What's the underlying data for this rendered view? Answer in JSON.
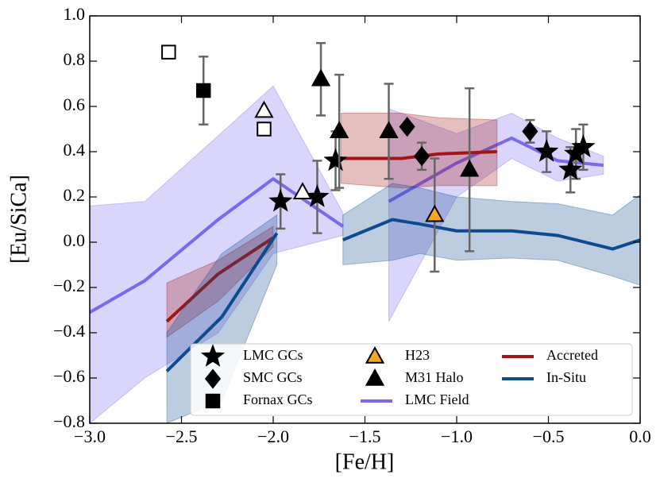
{
  "chart_data": {
    "type": "scatter",
    "xlabel": "[Fe/H]",
    "ylabel": "[Eu/SiCa]",
    "xlim": [
      -3,
      0
    ],
    "ylim": [
      -0.8,
      1.0
    ],
    "xticks": [
      {
        "value": -3,
        "label": "−3.0"
      },
      {
        "value": -2.5,
        "label": "−2.5"
      },
      {
        "value": -2,
        "label": "−2.0"
      },
      {
        "value": -1.5,
        "label": "−1.5"
      },
      {
        "value": -1,
        "label": "−1.0"
      },
      {
        "value": -0.5,
        "label": "−0.5"
      },
      {
        "value": 0,
        "label": "0.0"
      }
    ],
    "yticks": [
      {
        "value": -0.8,
        "label": "−0.8"
      },
      {
        "value": -0.6,
        "label": "−0.6"
      },
      {
        "value": -0.4,
        "label": "−0.4"
      },
      {
        "value": -0.2,
        "label": "−0.2"
      },
      {
        "value": 0,
        "label": "0.0"
      },
      0.2,
      0.4,
      0.6,
      0.8,
      {
        "value": 1,
        "label": "1.0"
      }
    ],
    "legend": "lower right",
    "series": [
      {
        "name": "LMC GCs",
        "type": "scatter",
        "marker": "star",
        "color": "#000000",
        "x": [
          -1.96,
          -1.76,
          -1.66,
          -0.51,
          -0.38,
          -0.35,
          -0.31
        ],
        "values": [
          0.18,
          0.2,
          0.36,
          0.4,
          0.32,
          0.39,
          0.42
        ],
        "errors": [
          0.12,
          0.16,
          0.13,
          0.09,
          0.1,
          0.11,
          0.1
        ]
      },
      {
        "name": "SMC GCs",
        "type": "scatter",
        "marker": "diamond",
        "color": "#000000",
        "x": [
          -1.27,
          -1.19,
          -0.6
        ],
        "values": [
          0.51,
          0.38,
          0.49
        ],
        "errors": [
          null,
          0.06,
          0.05
        ]
      },
      {
        "name": "Fornax GCs",
        "type": "scatter",
        "marker": "square",
        "color": "#000000",
        "x": [
          -2.38,
          -2.57,
          -2.05
        ],
        "values": [
          0.67,
          0.84,
          0.5
        ],
        "errors": [
          0.15,
          null,
          null
        ],
        "facecolors": [
          "#000000",
          "#ffffff",
          "#ffffff"
        ]
      },
      {
        "name": "H23",
        "type": "scatter",
        "marker": "triangle",
        "color": "#f5a623",
        "x": [
          -1.12
        ],
        "values": [
          0.12
        ],
        "errors": [
          0.25
        ]
      },
      {
        "name": "M31 Halo",
        "type": "scatter",
        "marker": "triangle",
        "color": "#000000",
        "x": [
          -1.74,
          -1.64,
          -1.37,
          -0.93,
          -2.05,
          -1.84
        ],
        "values": [
          0.72,
          0.49,
          0.49,
          0.32,
          0.58,
          0.22
        ],
        "errors": [
          0.16,
          0.25,
          0.21,
          0.36,
          null,
          null
        ],
        "facecolors": [
          "#000000",
          "#000000",
          "#000000",
          "#000000",
          "#ffffff",
          "#ffffff"
        ]
      },
      {
        "name": "LMC Field",
        "type": "line",
        "color": "#7b68ee",
        "x": [
          -3.0,
          -2.7,
          -2.3,
          -2.0,
          -1.62,
          null,
          -1.37,
          -1.0,
          -0.7,
          -0.45,
          -0.2
        ],
        "values": [
          -0.31,
          -0.17,
          0.1,
          0.28,
          0.07,
          null,
          0.18,
          0.35,
          0.46,
          0.36,
          0.34
        ],
        "lower": [
          -0.8,
          -0.6,
          -0.4,
          -0.05,
          0.03,
          null,
          -0.35,
          0.2,
          0.37,
          0.27,
          0.3
        ],
        "upper": [
          0.16,
          0.18,
          0.47,
          0.69,
          0.13,
          null,
          0.59,
          0.48,
          0.57,
          0.46,
          0.38
        ]
      },
      {
        "name": "Accreted",
        "type": "line",
        "color": "#a01515",
        "x": [
          -2.58,
          -2.3,
          -2.0,
          null,
          -1.63,
          -1.3,
          -1.1,
          -0.78
        ],
        "values": [
          -0.35,
          -0.14,
          0.02,
          null,
          0.37,
          0.37,
          0.39,
          0.4
        ],
        "lower": [
          -0.42,
          -0.26,
          -0.02,
          null,
          0.26,
          0.24,
          0.25,
          0.25
        ],
        "upper": [
          -0.18,
          -0.08,
          0.07,
          null,
          0.57,
          0.57,
          0.55,
          0.54
        ]
      },
      {
        "name": "In-Situ",
        "type": "line",
        "color": "#0d4a8f",
        "x": [
          -2.58,
          -2.28,
          -1.98,
          null,
          -1.62,
          -1.35,
          -1.2,
          -1.0,
          -0.7,
          -0.45,
          -0.15,
          0.0
        ],
        "values": [
          -0.57,
          -0.33,
          0.04,
          null,
          0.01,
          0.1,
          0.08,
          0.05,
          0.05,
          0.03,
          -0.03,
          0.01
        ],
        "lower": [
          -0.8,
          -0.7,
          -0.1,
          null,
          -0.1,
          -0.08,
          -0.05,
          -0.08,
          -0.07,
          -0.08,
          -0.15,
          -0.19
        ],
        "upper": [
          -0.4,
          -0.05,
          0.12,
          null,
          0.12,
          0.26,
          0.24,
          0.2,
          0.18,
          0.17,
          0.12,
          0.21
        ]
      }
    ]
  }
}
